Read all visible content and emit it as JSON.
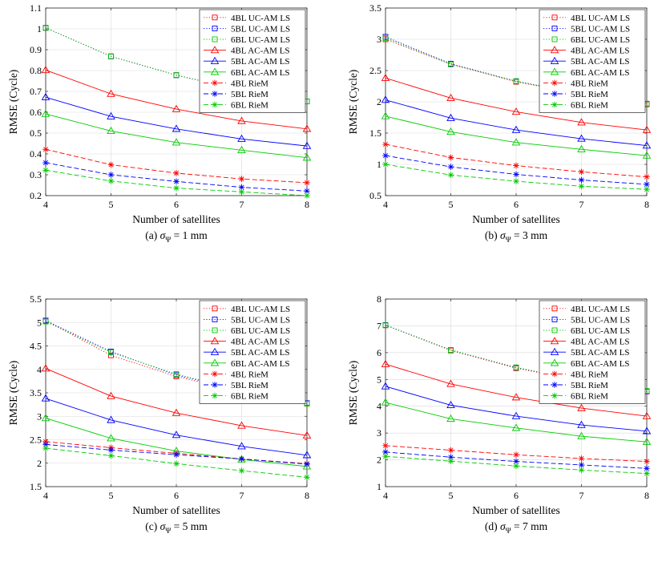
{
  "chart_data": [
    {
      "type": "line",
      "caption_prefix": "(a)",
      "caption_sigma": "σ",
      "caption_sub": "Ψ",
      "caption_rest": " = 1 mm",
      "xlabel": "Number of satellites",
      "ylabel": "RMSE (Cycle)",
      "x": [
        4,
        5,
        6,
        7,
        8
      ],
      "xlim": [
        4,
        8
      ],
      "ylim": [
        0.2,
        1.1
      ],
      "yticks": [
        0.2,
        0.3,
        0.4,
        0.5,
        0.6,
        0.7,
        0.8,
        0.9,
        1,
        1.1
      ],
      "ytick_labels": [
        "0.2",
        "0.3",
        "0.4",
        "0.5",
        "0.6",
        "0.7",
        "0.8",
        "0.9",
        "1",
        "1.1"
      ],
      "legend_position": "top-right",
      "series": [
        {
          "name": "4BL UC-AM LS",
          "values": [
            1.005,
            0.868,
            0.778,
            0.705,
            0.652
          ]
        },
        {
          "name": "5BL UC-AM LS",
          "values": [
            1.005,
            0.868,
            0.778,
            0.705,
            0.652
          ]
        },
        {
          "name": "6BL UC-AM LS",
          "values": [
            1.005,
            0.868,
            0.778,
            0.705,
            0.652
          ]
        },
        {
          "name": "4BL AC-AM LS",
          "values": [
            0.802,
            0.688,
            0.615,
            0.558,
            0.52
          ]
        },
        {
          "name": "5BL AC-AM LS",
          "values": [
            0.672,
            0.58,
            0.52,
            0.472,
            0.438
          ]
        },
        {
          "name": "6BL AC-AM LS",
          "values": [
            0.592,
            0.51,
            0.455,
            0.418,
            0.382
          ]
        },
        {
          "name": "4BL RieM",
          "values": [
            0.422,
            0.348,
            0.308,
            0.28,
            0.262
          ]
        },
        {
          "name": "5BL RieM",
          "values": [
            0.358,
            0.3,
            0.268,
            0.24,
            0.222
          ]
        },
        {
          "name": "6BL RieM",
          "values": [
            0.322,
            0.27,
            0.236,
            0.218,
            0.2
          ]
        }
      ]
    },
    {
      "type": "line",
      "caption_prefix": "(b)",
      "caption_sigma": "σ",
      "caption_sub": "Ψ",
      "caption_rest": " = 3 mm",
      "xlabel": "Number of satellites",
      "ylabel": "RMSE (Cycle)",
      "x": [
        4,
        5,
        6,
        7,
        8
      ],
      "xlim": [
        4,
        8
      ],
      "ylim": [
        0.5,
        3.5
      ],
      "yticks": [
        0.5,
        1,
        1.5,
        2,
        2.5,
        3,
        3.5
      ],
      "ytick_labels": [
        "0.5",
        "1",
        "1.5",
        "2",
        "2.5",
        "3",
        "3.5"
      ],
      "legend_position": "top-right",
      "series": [
        {
          "name": "4BL UC-AM LS",
          "values": [
            3.0,
            2.6,
            2.32,
            2.12,
            1.96
          ]
        },
        {
          "name": "5BL UC-AM LS",
          "values": [
            3.04,
            2.61,
            2.33,
            2.13,
            1.97
          ]
        },
        {
          "name": "6BL UC-AM LS",
          "values": [
            3.02,
            2.6,
            2.33,
            2.12,
            1.97
          ]
        },
        {
          "name": "4BL AC-AM LS",
          "values": [
            2.38,
            2.06,
            1.84,
            1.67,
            1.55
          ]
        },
        {
          "name": "5BL AC-AM LS",
          "values": [
            2.03,
            1.74,
            1.55,
            1.41,
            1.3
          ]
        },
        {
          "name": "6BL AC-AM LS",
          "values": [
            1.77,
            1.52,
            1.35,
            1.24,
            1.14
          ]
        },
        {
          "name": "4BL RieM",
          "values": [
            1.32,
            1.11,
            0.98,
            0.88,
            0.8
          ]
        },
        {
          "name": "5BL RieM",
          "values": [
            1.14,
            0.96,
            0.84,
            0.75,
            0.68
          ]
        },
        {
          "name": "6BL RieM",
          "values": [
            1.0,
            0.83,
            0.73,
            0.65,
            0.6
          ]
        }
      ]
    },
    {
      "type": "line",
      "caption_prefix": "(c)",
      "caption_sigma": "σ",
      "caption_sub": "Ψ",
      "caption_rest": " = 5 mm",
      "xlabel": "Number of satellites",
      "ylabel": "RMSE (Cycle)",
      "x": [
        4,
        5,
        6,
        7,
        8
      ],
      "xlim": [
        4,
        8
      ],
      "ylim": [
        1.5,
        5.5
      ],
      "yticks": [
        1.5,
        2,
        2.5,
        3,
        3.5,
        4,
        4.5,
        5,
        5.5
      ],
      "ytick_labels": [
        "1.5",
        "2",
        "2.5",
        "3",
        "3.5",
        "4",
        "4.5",
        "5",
        "5.5"
      ],
      "legend_position": "top-right",
      "series": [
        {
          "name": "4BL UC-AM LS",
          "values": [
            5.04,
            4.3,
            3.85,
            3.52,
            3.27
          ]
        },
        {
          "name": "5BL UC-AM LS",
          "values": [
            5.04,
            4.38,
            3.88,
            3.55,
            3.28
          ]
        },
        {
          "name": "6BL UC-AM LS",
          "values": [
            5.02,
            4.36,
            3.9,
            3.55,
            3.27
          ]
        },
        {
          "name": "4BL AC-AM LS",
          "values": [
            4.02,
            3.43,
            3.07,
            2.8,
            2.59
          ]
        },
        {
          "name": "5BL AC-AM LS",
          "values": [
            3.38,
            2.92,
            2.6,
            2.36,
            2.17
          ]
        },
        {
          "name": "6BL AC-AM LS",
          "values": [
            2.96,
            2.53,
            2.26,
            2.08,
            1.93
          ]
        },
        {
          "name": "4BL RieM",
          "values": [
            2.46,
            2.33,
            2.21,
            2.09,
            1.99
          ]
        },
        {
          "name": "5BL RieM",
          "values": [
            2.4,
            2.28,
            2.18,
            2.09,
            1.98
          ]
        },
        {
          "name": "6BL RieM",
          "values": [
            2.32,
            2.16,
            1.99,
            1.84,
            1.7
          ]
        }
      ]
    },
    {
      "type": "line",
      "caption_prefix": "(d)",
      "caption_sigma": "σ",
      "caption_sub": "Ψ",
      "caption_rest": " = 7 mm",
      "xlabel": "Number of satellites",
      "ylabel": "RMSE (Cycle)",
      "x": [
        4,
        5,
        6,
        7,
        8
      ],
      "xlim": [
        4,
        8
      ],
      "ylim": [
        1,
        8
      ],
      "yticks": [
        1,
        2,
        3,
        4,
        5,
        6,
        7,
        8
      ],
      "ytick_labels": [
        "1",
        "2",
        "3",
        "4",
        "5",
        "6",
        "7",
        "8"
      ],
      "legend_position": "top-right",
      "series": [
        {
          "name": "4BL UC-AM LS",
          "values": [
            7.02,
            6.08,
            5.42,
            4.95,
            4.55
          ]
        },
        {
          "name": "5BL UC-AM LS",
          "values": [
            7.03,
            6.1,
            5.44,
            4.96,
            4.56
          ]
        },
        {
          "name": "6BL UC-AM LS",
          "values": [
            7.02,
            6.1,
            5.45,
            4.96,
            4.57
          ]
        },
        {
          "name": "4BL AC-AM LS",
          "values": [
            5.57,
            4.83,
            4.33,
            3.93,
            3.63
          ]
        },
        {
          "name": "5BL AC-AM LS",
          "values": [
            4.74,
            4.04,
            3.63,
            3.3,
            3.07
          ]
        },
        {
          "name": "6BL AC-AM LS",
          "values": [
            4.14,
            3.53,
            3.19,
            2.88,
            2.67
          ]
        },
        {
          "name": "4BL RieM",
          "values": [
            2.53,
            2.36,
            2.19,
            2.05,
            1.94
          ]
        },
        {
          "name": "5BL RieM",
          "values": [
            2.29,
            2.1,
            1.94,
            1.81,
            1.68
          ]
        },
        {
          "name": "6BL RieM",
          "values": [
            2.13,
            1.95,
            1.77,
            1.62,
            1.49
          ]
        }
      ]
    }
  ],
  "series_styles": [
    {
      "color": "#ff0000",
      "dash": "1.2,2.2",
      "marker": "square"
    },
    {
      "color": "#0000ff",
      "dash": "1.2,2.2",
      "marker": "square"
    },
    {
      "color": "#00cc00",
      "dash": "1.2,2.2",
      "marker": "square"
    },
    {
      "color": "#ff0000",
      "dash": "",
      "marker": "triangle"
    },
    {
      "color": "#0000ff",
      "dash": "",
      "marker": "triangle"
    },
    {
      "color": "#00cc00",
      "dash": "",
      "marker": "triangle"
    },
    {
      "color": "#ff0000",
      "dash": "6,3",
      "marker": "star"
    },
    {
      "color": "#0000ff",
      "dash": "6,3",
      "marker": "star"
    },
    {
      "color": "#00cc00",
      "dash": "6,3",
      "marker": "star"
    }
  ]
}
